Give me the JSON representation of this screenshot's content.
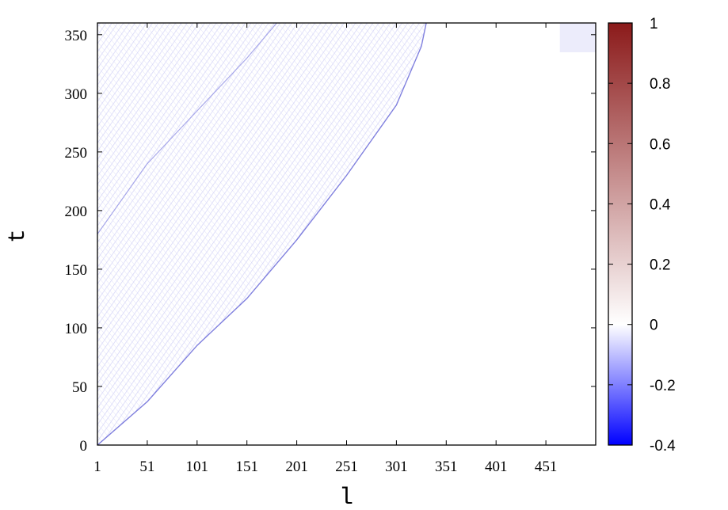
{
  "chart_data": {
    "type": "heatmap",
    "title": "",
    "xlabel": "l",
    "ylabel": "t",
    "x_ticks": [
      "1",
      "51",
      "101",
      "151",
      "201",
      "251",
      "301",
      "351",
      "401",
      "451"
    ],
    "x_tick_values": [
      1,
      51,
      101,
      151,
      201,
      251,
      301,
      351,
      401,
      451
    ],
    "xlim": [
      1,
      501
    ],
    "y_ticks": [
      "0",
      "50",
      "100",
      "150",
      "200",
      "250",
      "300",
      "350"
    ],
    "y_tick_values": [
      0,
      50,
      100,
      150,
      200,
      250,
      300,
      350
    ],
    "ylim": [
      0,
      360
    ],
    "colorbar": {
      "ticks": [
        "1",
        "0.8",
        "0.6",
        "0.4",
        "0.2",
        "0",
        "-0.2",
        "-0.4"
      ],
      "tick_values": [
        1,
        0.8,
        0.6,
        0.4,
        0.2,
        0,
        -0.2,
        -0.4
      ],
      "range": [
        -0.4,
        1
      ],
      "colors": {
        "min": "#0000ff",
        "zero": "#ffffff",
        "max": "#8b1a1a"
      }
    },
    "features": {
      "light_cone_front": [
        [
          1,
          0
        ],
        [
          51,
          37
        ],
        [
          101,
          85
        ],
        [
          151,
          125
        ],
        [
          201,
          175
        ],
        [
          251,
          230
        ],
        [
          301,
          290
        ],
        [
          326,
          340
        ],
        [
          331,
          360
        ]
      ],
      "reflected_front": [
        [
          1,
          180
        ],
        [
          51,
          240
        ],
        [
          101,
          285
        ],
        [
          151,
          330
        ],
        [
          181,
          360
        ]
      ],
      "corner_patch": {
        "l_range": [
          465,
          501
        ],
        "t_range": [
          335,
          360
        ]
      }
    },
    "grid": false,
    "legend": "colorbar-right"
  }
}
